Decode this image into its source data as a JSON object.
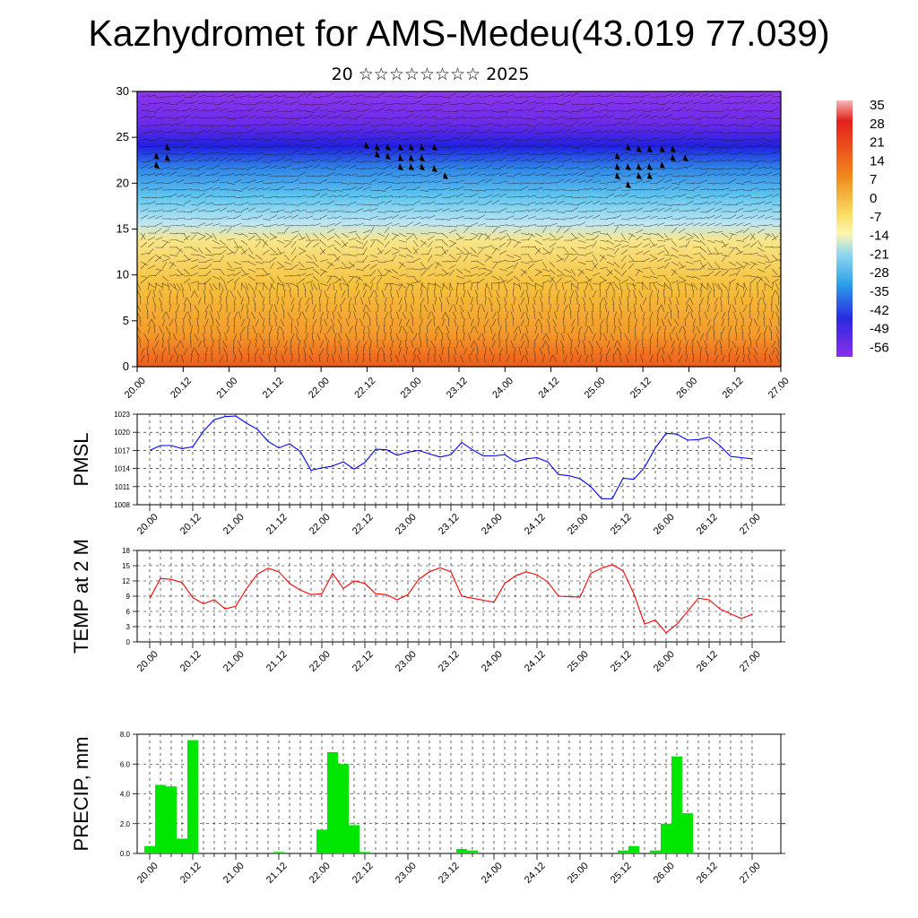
{
  "title": "Kazhydromet for AMS-Medeu(43.019 77.039)",
  "subtitle": "20 ☆☆☆☆☆☆☆☆ 2025",
  "time_ticks": [
    "20.00",
    "20.12",
    "21.00",
    "21.12",
    "22.00",
    "22.12",
    "23.00",
    "23.12",
    "24.00",
    "24.12",
    "25.00",
    "25.12",
    "26.00",
    "26.12",
    "27.00"
  ],
  "chart_data": [
    {
      "type": "heatmap",
      "name_key": "cross-section",
      "yticks": [
        "0",
        "5",
        "10",
        "15",
        "20",
        "25",
        "30"
      ],
      "ylim": [
        0,
        30
      ],
      "colorbar_labels": [
        "35",
        "28",
        "21",
        "14",
        "7",
        "0",
        "-7",
        "-14",
        "-21",
        "-28",
        "-35",
        "-42",
        "-49",
        "-56"
      ],
      "colors": {
        "warm": "#f0641e",
        "yellow": "#f8d75a",
        "cyan": "#5fc8f0",
        "blue": "#3c3cf0",
        "violet": "#8a2be2"
      }
    },
    {
      "type": "line",
      "ylabel": "PMSL",
      "yticks": [
        "1008",
        "1011",
        "1014",
        "1017",
        "1020",
        "1023"
      ],
      "ylim": [
        1008,
        1023
      ],
      "color": "#0000ff",
      "x": [
        "20.00",
        "20.03",
        "20.06",
        "20.09",
        "20.12",
        "20.15",
        "20.18",
        "20.21",
        "21.00",
        "21.03",
        "21.06",
        "21.09",
        "21.12",
        "21.15",
        "21.18",
        "21.21",
        "22.00",
        "22.03",
        "22.06",
        "22.09",
        "22.12",
        "22.15",
        "22.18",
        "22.21",
        "23.00",
        "23.03",
        "23.06",
        "23.09",
        "23.12",
        "23.15",
        "23.18",
        "23.21",
        "24.00",
        "24.03",
        "24.06",
        "24.09",
        "24.12",
        "24.15",
        "24.18",
        "24.21",
        "25.00",
        "25.03",
        "25.06",
        "25.09",
        "25.12",
        "25.15",
        "25.18",
        "25.21",
        "26.00",
        "26.03",
        "26.06",
        "26.09",
        "26.12",
        "26.15",
        "26.18",
        "26.21",
        "27.00"
      ],
      "values": [
        1017.0,
        1017.8,
        1017.8,
        1017.3,
        1017.6,
        1020.2,
        1022.1,
        1022.6,
        1022.7,
        1021.5,
        1020.5,
        1018.5,
        1017.4,
        1018.1,
        1016.8,
        1013.7,
        1014.1,
        1014.4,
        1015.1,
        1013.9,
        1015.0,
        1017.2,
        1017.1,
        1016.2,
        1016.7,
        1017.0,
        1016.4,
        1015.9,
        1016.3,
        1018.3,
        1017.1,
        1016.1,
        1016.1,
        1016.3,
        1015.1,
        1015.6,
        1015.8,
        1015.1,
        1013.0,
        1012.8,
        1012.3,
        1011.0,
        1009.0,
        1009.0,
        1012.4,
        1012.2,
        1014.2,
        1017.4,
        1019.8,
        1019.7,
        1018.7,
        1018.8,
        1019.2,
        1017.8,
        1016.0,
        1015.8,
        1015.6
      ]
    },
    {
      "type": "line",
      "ylabel": "TEMP at 2 M",
      "yticks": [
        "0",
        "3",
        "6",
        "9",
        "12",
        "15",
        "18"
      ],
      "ylim": [
        0,
        18
      ],
      "color": "#ff0000",
      "values": [
        8.5,
        12.5,
        12.3,
        11.7,
        8.7,
        7.5,
        8.3,
        6.5,
        7.0,
        10.5,
        13.3,
        14.5,
        13.8,
        11.5,
        10.2,
        9.3,
        9.5,
        13.5,
        10.5,
        12.0,
        11.5,
        9.5,
        9.3,
        8.3,
        9.3,
        12.3,
        13.8,
        14.6,
        13.8,
        9.0,
        8.6,
        8.2,
        7.8,
        11.5,
        13.0,
        13.8,
        13.2,
        11.8,
        9.0,
        8.9,
        8.8,
        13.5,
        14.5,
        15.2,
        14.0,
        9.5,
        3.5,
        4.3,
        1.8,
        3.5,
        6.0,
        8.6,
        8.3,
        6.5,
        5.5,
        4.6,
        5.4
      ]
    },
    {
      "type": "bar",
      "ylabel": "PRECIP, mm",
      "yticks": [
        "0.0",
        "2.0",
        "4.0",
        "6.0",
        "8.0"
      ],
      "ylim": [
        0,
        8
      ],
      "color": "#00e600",
      "values": [
        0.5,
        4.6,
        4.5,
        1.0,
        7.6,
        0,
        0,
        0,
        0,
        0,
        0,
        0,
        0.1,
        0,
        0,
        0,
        1.6,
        6.8,
        6.0,
        1.9,
        0.1,
        0,
        0,
        0,
        0,
        0,
        0,
        0,
        0,
        0.3,
        0.2,
        0,
        0,
        0,
        0,
        0.05,
        0,
        0,
        0,
        0,
        0,
        0,
        0,
        0,
        0.2,
        0.5,
        0,
        0.2,
        2.0,
        6.5,
        2.7,
        0,
        0,
        0,
        0,
        0,
        0
      ]
    }
  ]
}
